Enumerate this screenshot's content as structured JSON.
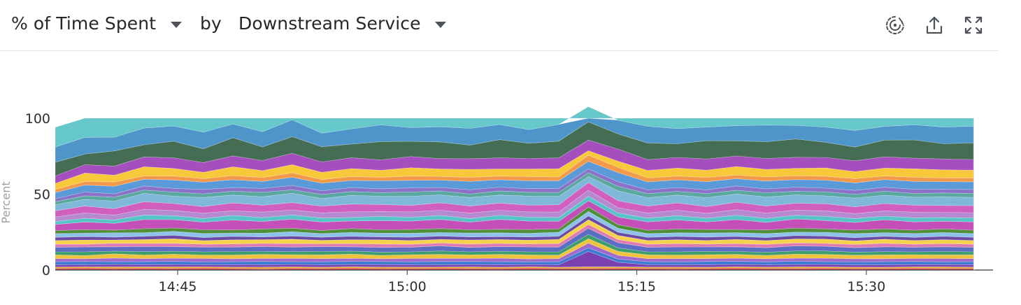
{
  "header": {
    "metric_label": "% of Time Spent",
    "by_label": "by",
    "group_label": "Downstream Service"
  },
  "icons": {
    "metric_caret": "caret-down",
    "group_caret": "caret-down",
    "trace": "trace-icon",
    "export": "export-icon",
    "expand": "fullscreen-icon"
  },
  "chart_data": {
    "type": "area",
    "stacked": true,
    "ylabel": "Percent",
    "ylim": [
      0,
      100
    ],
    "yticks": [
      "0",
      "50",
      "100"
    ],
    "xticks": [
      "14:45",
      "15:00",
      "15:15",
      "15:30"
    ],
    "x_range": [
      "14:37",
      "15:37"
    ],
    "grid": false,
    "legend": "none",
    "series": [
      {
        "color": "#d23a3a",
        "values": [
          1,
          1.2,
          0.9,
          1.1,
          1,
          1.2,
          1,
          0.8,
          1.1,
          1,
          1.2,
          0.9,
          1,
          1.1,
          1,
          0.9,
          1.2,
          1,
          1,
          1.1,
          1,
          0.9,
          1,
          1.2,
          1,
          1,
          1.1,
          0.9,
          1,
          1.1,
          1,
          1
        ]
      },
      {
        "color": "#e5a53a",
        "values": [
          1,
          0.9,
          1.2,
          1,
          1.1,
          0.9,
          1,
          1.2,
          1,
          0.9,
          1,
          1.1,
          1,
          0.9,
          1.1,
          1,
          1,
          0.9,
          1.2,
          1,
          1,
          1.1,
          0.9,
          1,
          1,
          1.1,
          1,
          1,
          0.9,
          1,
          1.1,
          1
        ]
      },
      {
        "color": "#7b3fb0",
        "values": [
          1.5,
          1.3,
          1.6,
          1.4,
          1.5,
          1.3,
          1.5,
          1.4,
          1.6,
          1.5,
          1.4,
          1.6,
          1.5,
          1.4,
          1.5,
          1.6,
          1.4,
          1.5,
          10,
          3,
          1.5,
          1.4,
          1.6,
          1.5,
          1.4,
          1.5,
          1.6,
          1.4,
          1.5,
          1.5,
          1.4,
          1.5
        ]
      },
      {
        "color": "#3f7bd1",
        "values": [
          2,
          2.2,
          1.8,
          2,
          2.1,
          1.9,
          2,
          2.2,
          1.8,
          2,
          2.1,
          2,
          1.9,
          2.2,
          2,
          2,
          1.8,
          2.1,
          2.5,
          2.2,
          2,
          1.9,
          2.1,
          2,
          2,
          2.2,
          1.8,
          2,
          2.1,
          2,
          1.9,
          2
        ]
      },
      {
        "color": "#a06acb",
        "values": [
          2,
          1.8,
          2.4,
          2,
          2.1,
          2.3,
          1.9,
          2,
          2.2,
          2.1,
          2,
          1.8,
          2.2,
          2.1,
          2,
          2.3,
          1.9,
          2,
          3,
          2.4,
          2,
          2.2,
          1.9,
          2.1,
          2,
          2,
          2.3,
          2.1,
          1.9,
          2,
          2.2,
          2
        ]
      },
      {
        "color": "#f0c33c",
        "values": [
          2.5,
          2.2,
          2.8,
          2.4,
          2.6,
          2.3,
          2.5,
          2.7,
          2.4,
          2.5,
          2.8,
          2.3,
          2.5,
          2.6,
          2.4,
          2.5,
          2.7,
          2.3,
          3,
          2.6,
          2.5,
          2.4,
          2.6,
          2.5,
          2.3,
          2.7,
          2.5,
          2.4,
          2.6,
          2.5,
          2.4,
          2.5
        ]
      },
      {
        "color": "#3e9e6b",
        "values": [
          2,
          2.4,
          1.8,
          2.2,
          2,
          2.1,
          2.3,
          1.9,
          2,
          2.2,
          2,
          2.1,
          1.9,
          2.3,
          2,
          2.1,
          2,
          2.2,
          2.8,
          2.3,
          2,
          2.1,
          2.2,
          1.9,
          2,
          2.1,
          2.3,
          2,
          2.1,
          1.9,
          2.2,
          2
        ]
      },
      {
        "color": "#5a6fc4",
        "values": [
          3,
          3.2,
          2.8,
          3.4,
          3,
          3.1,
          2.9,
          3.3,
          3,
          3.2,
          2.8,
          3.1,
          3,
          3.3,
          2.9,
          3,
          3.2,
          3.1,
          4,
          3.4,
          3,
          3.2,
          2.9,
          3.1,
          3,
          3.3,
          3,
          2.9,
          3.2,
          3,
          3.1,
          3
        ]
      },
      {
        "color": "#e07bb2",
        "values": [
          2,
          1.8,
          2.3,
          2,
          2.2,
          1.9,
          2.1,
          2,
          2.3,
          1.9,
          2.1,
          2.2,
          2,
          1.9,
          2.2,
          2.1,
          2,
          2.3,
          2.5,
          2.1,
          2,
          2.2,
          1.9,
          2.1,
          2.2,
          2,
          1.9,
          2.1,
          2.3,
          2,
          2.1,
          2
        ]
      },
      {
        "color": "#f5d24a",
        "values": [
          2.5,
          2.8,
          2.2,
          2.6,
          3,
          2.4,
          2.7,
          2.5,
          2.9,
          2.3,
          2.6,
          2.8,
          2.5,
          2.4,
          2.7,
          2.6,
          2.5,
          2.8,
          3.2,
          2.7,
          2.5,
          2.6,
          2.4,
          2.8,
          2.5,
          2.6,
          2.9,
          2.4,
          2.7,
          2.5,
          2.6,
          2.5
        ]
      },
      {
        "color": "#6a4aa5",
        "values": [
          2,
          2.2,
          1.9,
          2.1,
          2.3,
          2,
          2.2,
          1.8,
          2.1,
          2,
          2.2,
          1.9,
          2.1,
          2.2,
          2,
          1.9,
          2.1,
          2,
          2.4,
          2.1,
          2,
          2.1,
          2.2,
          1.9,
          2,
          2.2,
          2,
          2.1,
          1.9,
          2,
          2.2,
          2
        ]
      },
      {
        "color": "#8ec2ea",
        "values": [
          2.5,
          2.3,
          2.8,
          2.4,
          2.6,
          2.7,
          2.3,
          2.5,
          2.8,
          2.4,
          2.6,
          2.5,
          2.7,
          2.3,
          2.6,
          2.5,
          2.4,
          2.7,
          3,
          2.6,
          2.5,
          2.4,
          2.7,
          2.5,
          2.6,
          2.3,
          2.5,
          2.7,
          2.4,
          2.6,
          2.5,
          2.5
        ]
      },
      {
        "color": "#4f8f3a",
        "values": [
          2,
          2.3,
          1.8,
          2.6,
          2.2,
          2.4,
          2,
          2.7,
          2.3,
          2.1,
          2.5,
          2.2,
          2.4,
          2.6,
          2.1,
          2.3,
          2.5,
          2.2,
          3,
          2.4,
          2.2,
          2.5,
          2.3,
          2.1,
          2.4,
          2.6,
          2.2,
          2.3,
          2.5,
          2.1,
          2.4,
          2.2
        ]
      },
      {
        "color": "#c54fb8",
        "values": [
          4,
          5,
          4.5,
          6,
          5.5,
          5,
          6.5,
          5,
          6,
          5.5,
          5,
          6,
          5.5,
          6,
          5,
          6.5,
          5.5,
          5,
          4,
          5,
          5.5,
          6,
          5,
          6.5,
          5,
          6,
          5.5,
          5,
          6,
          5.5,
          5,
          5.5
        ]
      },
      {
        "color": "#56c5c8",
        "values": [
          2,
          2.5,
          2.2,
          3,
          2.6,
          2.4,
          3.1,
          2.5,
          2.8,
          2.6,
          2.3,
          2.9,
          2.5,
          2.7,
          2.4,
          2.8,
          2.6,
          2.5,
          3,
          2.7,
          2.5,
          2.8,
          2.4,
          2.9,
          2.6,
          2.5,
          2.8,
          2.6,
          2.4,
          2.7,
          2.5,
          2.6
        ]
      },
      {
        "color": "#b58ad1",
        "values": [
          3,
          3.5,
          3.2,
          3.8,
          3.4,
          3.6,
          3,
          3.7,
          3.3,
          3.5,
          3.8,
          3.2,
          3.6,
          3.4,
          3.7,
          3.3,
          3.5,
          3.6,
          4,
          3.5,
          3.4,
          3.6,
          3.3,
          3.7,
          3.5,
          3.4,
          3.6,
          3.3,
          3.5,
          3.7,
          3.4,
          3.5
        ]
      },
      {
        "color": "#d05fc0",
        "values": [
          4,
          4.5,
          4.2,
          5,
          4.6,
          4.3,
          5.2,
          4.5,
          4.8,
          4.4,
          5,
          4.6,
          4.3,
          4.9,
          4.5,
          4.7,
          4.4,
          4.8,
          5,
          4.6,
          4.5,
          4.8,
          4.4,
          4.9,
          4.6,
          4.5,
          4.7,
          4.4,
          4.8,
          4.6,
          4.5,
          4.6
        ]
      },
      {
        "color": "#7fb8d9",
        "values": [
          4,
          4.5,
          5,
          5.5,
          4.8,
          6,
          5.2,
          5.6,
          6.2,
          5,
          5.8,
          5.4,
          6,
          5.2,
          5.7,
          5.3,
          6,
          5.5,
          4,
          6.5,
          5.6,
          5.2,
          5.9,
          5.4,
          6,
          5.5,
          5.2,
          5.8,
          5.5,
          5.3,
          5.7,
          5.5
        ]
      },
      {
        "color": "#5aa8a0",
        "values": [
          2,
          2.3,
          2.6,
          2.2,
          2.8,
          2.4,
          2.6,
          2.9,
          2.3,
          2.7,
          2.5,
          2.4,
          2.8,
          2.6,
          2.3,
          2.7,
          2.5,
          2.6,
          2.5,
          3,
          2.6,
          2.4,
          2.7,
          2.5,
          2.8,
          2.4,
          2.6,
          2.5,
          2.7,
          2.4,
          2.6,
          2.5
        ]
      },
      {
        "color": "#8a72c9",
        "values": [
          2,
          2.5,
          2.2,
          2.7,
          2.4,
          2.9,
          2.3,
          2.6,
          2.8,
          2.4,
          2.6,
          2.5,
          2.7,
          2.3,
          2.8,
          2.5,
          2.4,
          2.7,
          2.5,
          3,
          2.5,
          2.6,
          2.4,
          2.8,
          2.5,
          2.7,
          2.4,
          2.6,
          2.5,
          2.8,
          2.5,
          2.6
        ]
      },
      {
        "color": "#5a9ad9",
        "values": [
          4,
          4.6,
          5,
          4.4,
          5.5,
          4.8,
          5.2,
          4.6,
          5.4,
          5,
          4.7,
          5.3,
          5,
          4.8,
          5.5,
          4.9,
          5.2,
          5,
          5,
          6,
          5.2,
          5,
          5.4,
          4.8,
          5.2,
          5,
          5.3,
          4.9,
          5.1,
          5.2,
          4.9,
          5.1
        ]
      },
      {
        "color": "#f39a4a",
        "values": [
          2,
          2.4,
          2.8,
          2.2,
          2.6,
          2.3,
          2.7,
          2.5,
          2.9,
          2.4,
          2.6,
          2.3,
          2.8,
          2.5,
          2.6,
          2.4,
          2.7,
          2.5,
          4,
          3.5,
          2.6,
          2.5,
          2.8,
          2.4,
          2.7,
          2.5,
          2.6,
          2.8,
          2.4,
          2.7,
          2.5,
          2.6
        ]
      },
      {
        "color": "#f7c83a",
        "values": [
          4,
          5.5,
          4.5,
          6,
          5,
          4.2,
          5.8,
          4.6,
          5.4,
          4.8,
          5.2,
          4.6,
          5.5,
          4.9,
          5.3,
          4.7,
          5.1,
          5.4,
          3,
          4,
          5,
          5.3,
          4.8,
          5.6,
          5,
          4.9,
          5.5,
          4.7,
          5.2,
          5.6,
          5.3,
          5.1
        ]
      },
      {
        "color": "#a54fbf",
        "values": [
          5,
          5.5,
          6,
          6.5,
          7,
          6.4,
          7.2,
          6.6,
          7.5,
          6.8,
          7.2,
          6.9,
          7.4,
          6.8,
          7,
          7.3,
          6.9,
          7.2,
          7,
          8,
          7.1,
          7,
          7.4,
          6.9,
          7.2,
          7.3,
          6.9,
          7.1,
          7.4,
          7,
          7.2,
          7
        ]
      },
      {
        "color": "#446d53",
        "values": [
          9,
          7,
          10,
          8,
          11,
          9,
          12,
          9,
          11,
          10,
          9,
          12,
          10,
          11,
          9,
          12,
          10,
          11,
          12,
          10,
          11,
          9,
          12,
          10,
          11,
          12,
          10,
          9,
          11,
          12,
          10,
          11
        ]
      },
      {
        "color": "#4e95ca",
        "values": [
          10,
          11,
          9,
          11,
          10,
          11,
          9,
          10,
          11,
          9,
          10,
          11,
          9,
          10,
          11,
          10,
          9,
          11,
          10,
          9,
          11,
          10,
          9,
          10,
          11,
          9,
          10,
          11,
          9,
          10,
          11,
          11
        ]
      },
      {
        "color": "#66c8cb",
        "values": [
          13,
          14,
          15,
          12,
          15,
          16,
          14,
          15,
          12,
          13,
          15,
          16,
          14,
          13,
          15,
          14,
          16,
          15,
          13,
          12,
          14,
          15,
          16,
          14,
          13,
          15,
          14,
          16,
          15,
          14,
          15,
          18
        ]
      }
    ]
  }
}
